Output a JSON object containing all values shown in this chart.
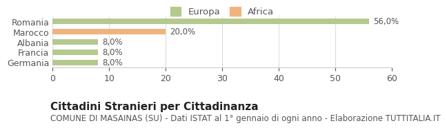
{
  "categories": [
    "Romania",
    "Marocco",
    "Albania",
    "Francia",
    "Germania"
  ],
  "values": [
    56.0,
    20.0,
    8.0,
    8.0,
    8.0
  ],
  "colors": [
    "#b5c98e",
    "#f0b37e",
    "#b5c98e",
    "#b5c98e",
    "#b5c98e"
  ],
  "bar_labels": [
    "56,0%",
    "20,0%",
    "8,0%",
    "8,0%",
    "8,0%"
  ],
  "legend_labels": [
    "Europa",
    "Africa"
  ],
  "legend_colors": [
    "#b5c98e",
    "#f0b37e"
  ],
  "xlim": [
    0,
    60
  ],
  "xticks": [
    0,
    10,
    20,
    30,
    40,
    50,
    60
  ],
  "title": "Cittadini Stranieri per Cittadinanza",
  "subtitle": "COMUNE DI MASAINAS (SU) - Dati ISTAT al 1° gennaio di ogni anno - Elaborazione TUTTITALIA.IT",
  "background_color": "#ffffff",
  "bar_height": 0.55,
  "title_fontsize": 11,
  "subtitle_fontsize": 8.5,
  "label_fontsize": 8.5,
  "tick_fontsize": 9,
  "legend_fontsize": 9.5
}
